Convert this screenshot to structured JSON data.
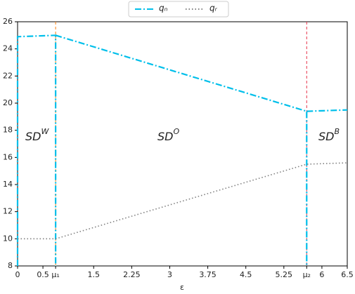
{
  "chart_data": {
    "type": "line",
    "x_label": "ε",
    "xlim": [
      0,
      6.5
    ],
    "ylim": [
      8,
      26
    ],
    "xticks": [
      0,
      0.5,
      {
        "value": 0.75,
        "label": "μ₁"
      },
      1.5,
      2.25,
      3,
      3.75,
      4.5,
      5.25,
      {
        "value": 5.7,
        "label": "μ₂"
      },
      6,
      6.5
    ],
    "yticks": [
      8,
      10,
      12,
      14,
      16,
      18,
      20,
      22,
      24,
      26
    ],
    "series": [
      {
        "name": "qₙ",
        "color": "#00bfea",
        "style": "dashdot",
        "x": [
          0,
          0,
          0.75,
          0.75,
          0.75,
          0.75,
          5.7,
          5.7,
          5.7,
          5.7,
          6.5
        ],
        "values": [
          8,
          24.9,
          25,
          8,
          null,
          25,
          19.4,
          8,
          null,
          19.4,
          19.5
        ]
      },
      {
        "name": "qᵣ",
        "color": "#808080",
        "style": "dotted",
        "x": [
          0,
          0.75,
          5.7,
          6.5
        ],
        "values": [
          10,
          10,
          15.5,
          15.6
        ]
      }
    ],
    "vlines": [
      {
        "x": 0.75,
        "color": "#ff7f0e"
      },
      {
        "x": 5.7,
        "color": "#e8334a"
      }
    ],
    "regions": [
      {
        "text": "SD",
        "sup": "W"
      },
      {
        "text": "SD",
        "sup": "O"
      },
      {
        "text": "SD",
        "sup": "B"
      }
    ]
  }
}
